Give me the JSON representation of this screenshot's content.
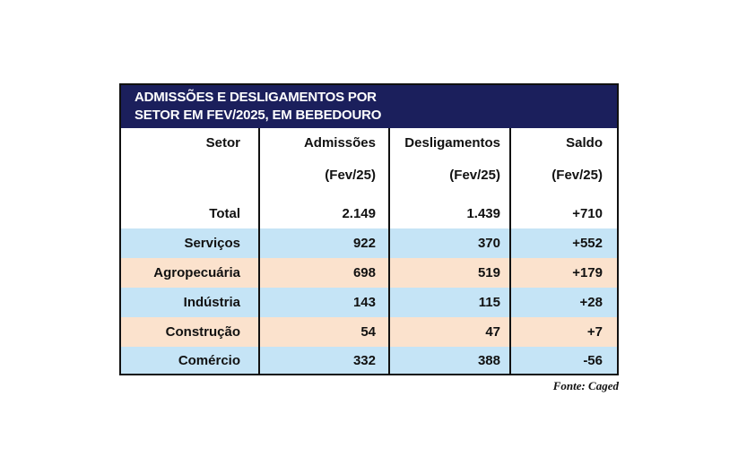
{
  "title": {
    "line1": "ADMISSÕES E DESLIGAMENTOS POR",
    "line2": "SETOR EM FEV/2025, EM BEBEDOURO"
  },
  "header": {
    "setor": "Setor",
    "admissoes": "Admissões",
    "admissoes_period": "(Fev/25)",
    "desligamentos": "Desligamentos",
    "desligamentos_period": "(Fev/25)",
    "saldo": "Saldo",
    "saldo_period": "(Fev/25)"
  },
  "total": {
    "label": "Total",
    "admissoes": "2.149",
    "desligamentos": "1.439",
    "saldo": "+710"
  },
  "rows": [
    {
      "setor": "Serviços",
      "admissoes": "922",
      "desligamentos": "370",
      "saldo": "+552"
    },
    {
      "setor": "Agropecuária",
      "admissoes": "698",
      "desligamentos": "519",
      "saldo": "+179"
    },
    {
      "setor": "Indústria",
      "admissoes": "143",
      "desligamentos": "115",
      "saldo": "+28"
    },
    {
      "setor": "Construção",
      "admissoes": "54",
      "desligamentos": "47",
      "saldo": "+7"
    },
    {
      "setor": "Comércio",
      "admissoes": "332",
      "desligamentos": "388",
      "saldo": "-56"
    }
  ],
  "colors": {
    "title_bg": "#1b1f5c",
    "row_blue": "#c5e4f6",
    "row_peach": "#fbe2cd"
  },
  "source": "Fonte: Caged"
}
